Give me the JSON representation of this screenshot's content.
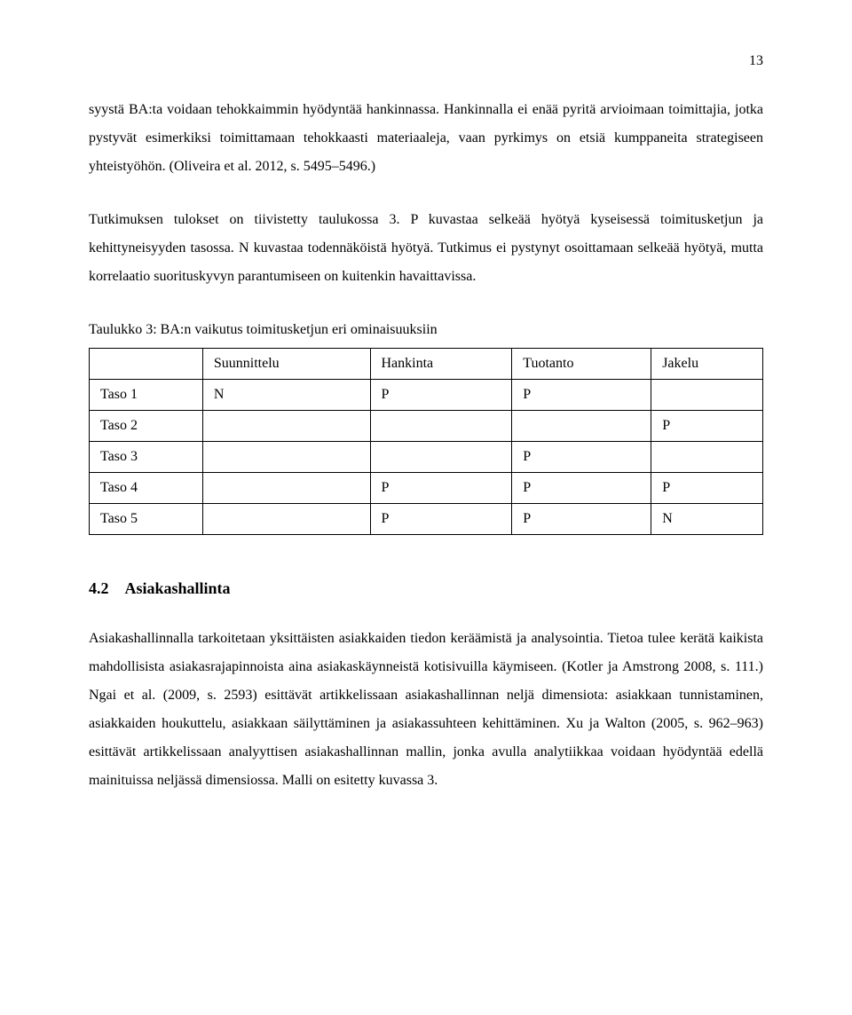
{
  "page_number": "13",
  "paragraph1": "syystä BA:ta voidaan tehokkaimmin hyödyntää hankinnassa. Hankinnalla ei enää pyritä arvioimaan toimittajia, jotka pystyvät esimerkiksi toimittamaan tehokkaasti materiaaleja, vaan pyrkimys on etsiä kumppaneita strategiseen yhteistyöhön. (Oliveira et al. 2012, s. 5495–5496.)",
  "paragraph2": "Tutkimuksen tulokset on tiivistetty taulukossa 3. P kuvastaa selkeää hyötyä kyseisessä toimitusketjun ja kehittyneisyyden tasossa. N kuvastaa todennäköistä hyötyä. Tutkimus ei pystynyt osoittamaan selkeää hyötyä, mutta korrelaatio suorituskyvyn parantumiseen on kuitenkin havaittavissa.",
  "table": {
    "caption": "Taulukko 3: BA:n vaikutus toimitusketjun eri ominaisuuksiin",
    "columns": [
      "",
      "Suunnittelu",
      "Hankinta",
      "Tuotanto",
      "Jakelu"
    ],
    "rows": [
      [
        "Taso 1",
        "N",
        "P",
        "P",
        ""
      ],
      [
        "Taso 2",
        "",
        "",
        "",
        "P"
      ],
      [
        "Taso 3",
        "",
        "",
        "P",
        ""
      ],
      [
        "Taso 4",
        "",
        "P",
        "P",
        "P"
      ],
      [
        "Taso 5",
        "",
        "P",
        "P",
        "N"
      ]
    ]
  },
  "section": {
    "number": "4.2",
    "title": "Asiakashallinta"
  },
  "paragraph3": "Asiakashallinnalla tarkoitetaan yksittäisten asiakkaiden tiedon keräämistä ja analysointia. Tietoa tulee kerätä kaikista mahdollisista asiakasrajapinnoista aina asiakaskäynneistä kotisivuilla käymiseen. (Kotler ja Amstrong 2008, s. 111.) Ngai et al. (2009, s. 2593) esittävät artikkelissaan asiakashallinnan neljä dimensiota: asiakkaan tunnistaminen, asiakkaiden houkuttelu, asiakkaan säilyttäminen ja asiakassuhteen kehittäminen. Xu ja Walton (2005, s. 962–963) esittävät artikkelissaan analyyttisen asiakashallinnan mallin, jonka avulla analytiikkaa voidaan hyödyntää edellä mainituissa neljässä dimensiossa. Malli on esitetty kuvassa 3."
}
